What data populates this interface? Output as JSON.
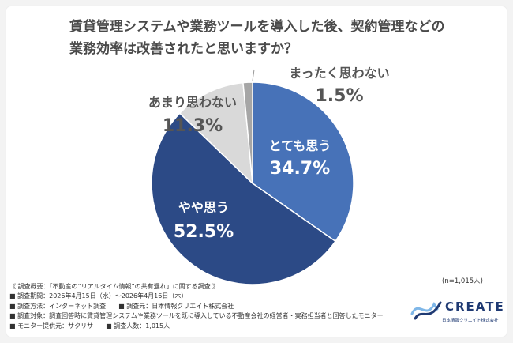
{
  "title_lines": [
    "賃貸管理システムや業務ツールを導入した後、契約管理などの",
    "業務効率は改善されたと思いますか？"
  ],
  "chart_data": {
    "type": "pie",
    "title": "賃貸管理システムや業務ツールを導入した後、契約管理などの業務効率は改善されたと思いますか？",
    "slices": [
      {
        "label": "とても思う",
        "value": 34.7,
        "value_label": "34.7%",
        "color": "#4772b8"
      },
      {
        "label": "やや思う",
        "value": 52.5,
        "value_label": "52.5%",
        "color": "#2c4a86"
      },
      {
        "label": "あまり思わない",
        "value": 11.3,
        "value_label": "11.3%",
        "color": "#d9d9d9"
      },
      {
        "label": "まったく思わない",
        "value": 1.5,
        "value_label": "1.5%",
        "color": "#a6a6a6"
      }
    ]
  },
  "sample_size": "(n=1,015人)",
  "notes": [
    "《 調査概要：「不動産の“リアルタイム情報”の共有遅れ」に関する調査 》",
    "■ 調査期間：2026年4月15日（水）～2026年4月16日（木）",
    "■ 調査方法：インターネット調査　　■ 調査元：日本情報クリエイト株式会社",
    "■ 調査対象：調査回答時に賃貸管理システムや業務ツールを既に導入している不動産会社の経営者・実務担当者と回答したモニター",
    "■ モニター提供元：サクリサ　　■ 調査人数：1,015人"
  ],
  "logo": {
    "word": "CREATE",
    "sub": "日本情報クリエイト株式会社",
    "icon": "create-logo-mark"
  }
}
